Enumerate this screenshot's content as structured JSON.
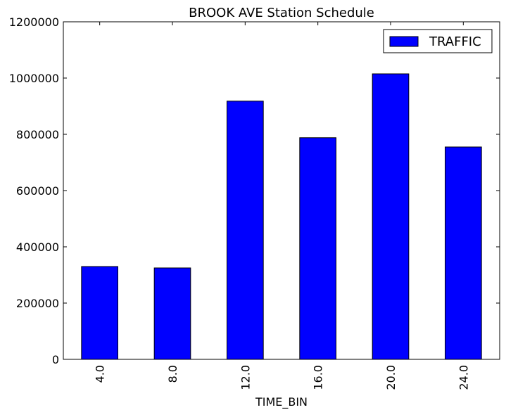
{
  "chart_data": {
    "type": "bar",
    "title": "BROOK AVE Station Schedule",
    "xlabel": "TIME_BIN",
    "ylabel": "",
    "categories": [
      "4.0",
      "8.0",
      "12.0",
      "16.0",
      "20.0",
      "24.0"
    ],
    "series": [
      {
        "name": "TRAFFIC",
        "values": [
          330000,
          325000,
          918000,
          788000,
          1015000,
          755000
        ],
        "color": "#0000ff"
      }
    ],
    "ylim": [
      0,
      1200000
    ],
    "yticks": [
      "0",
      "200000",
      "400000",
      "600000",
      "800000",
      "1000000",
      "1200000"
    ],
    "ytick_values": [
      0,
      200000,
      400000,
      600000,
      800000,
      1000000,
      1200000
    ],
    "grid": false,
    "legend_position": "top-right"
  }
}
